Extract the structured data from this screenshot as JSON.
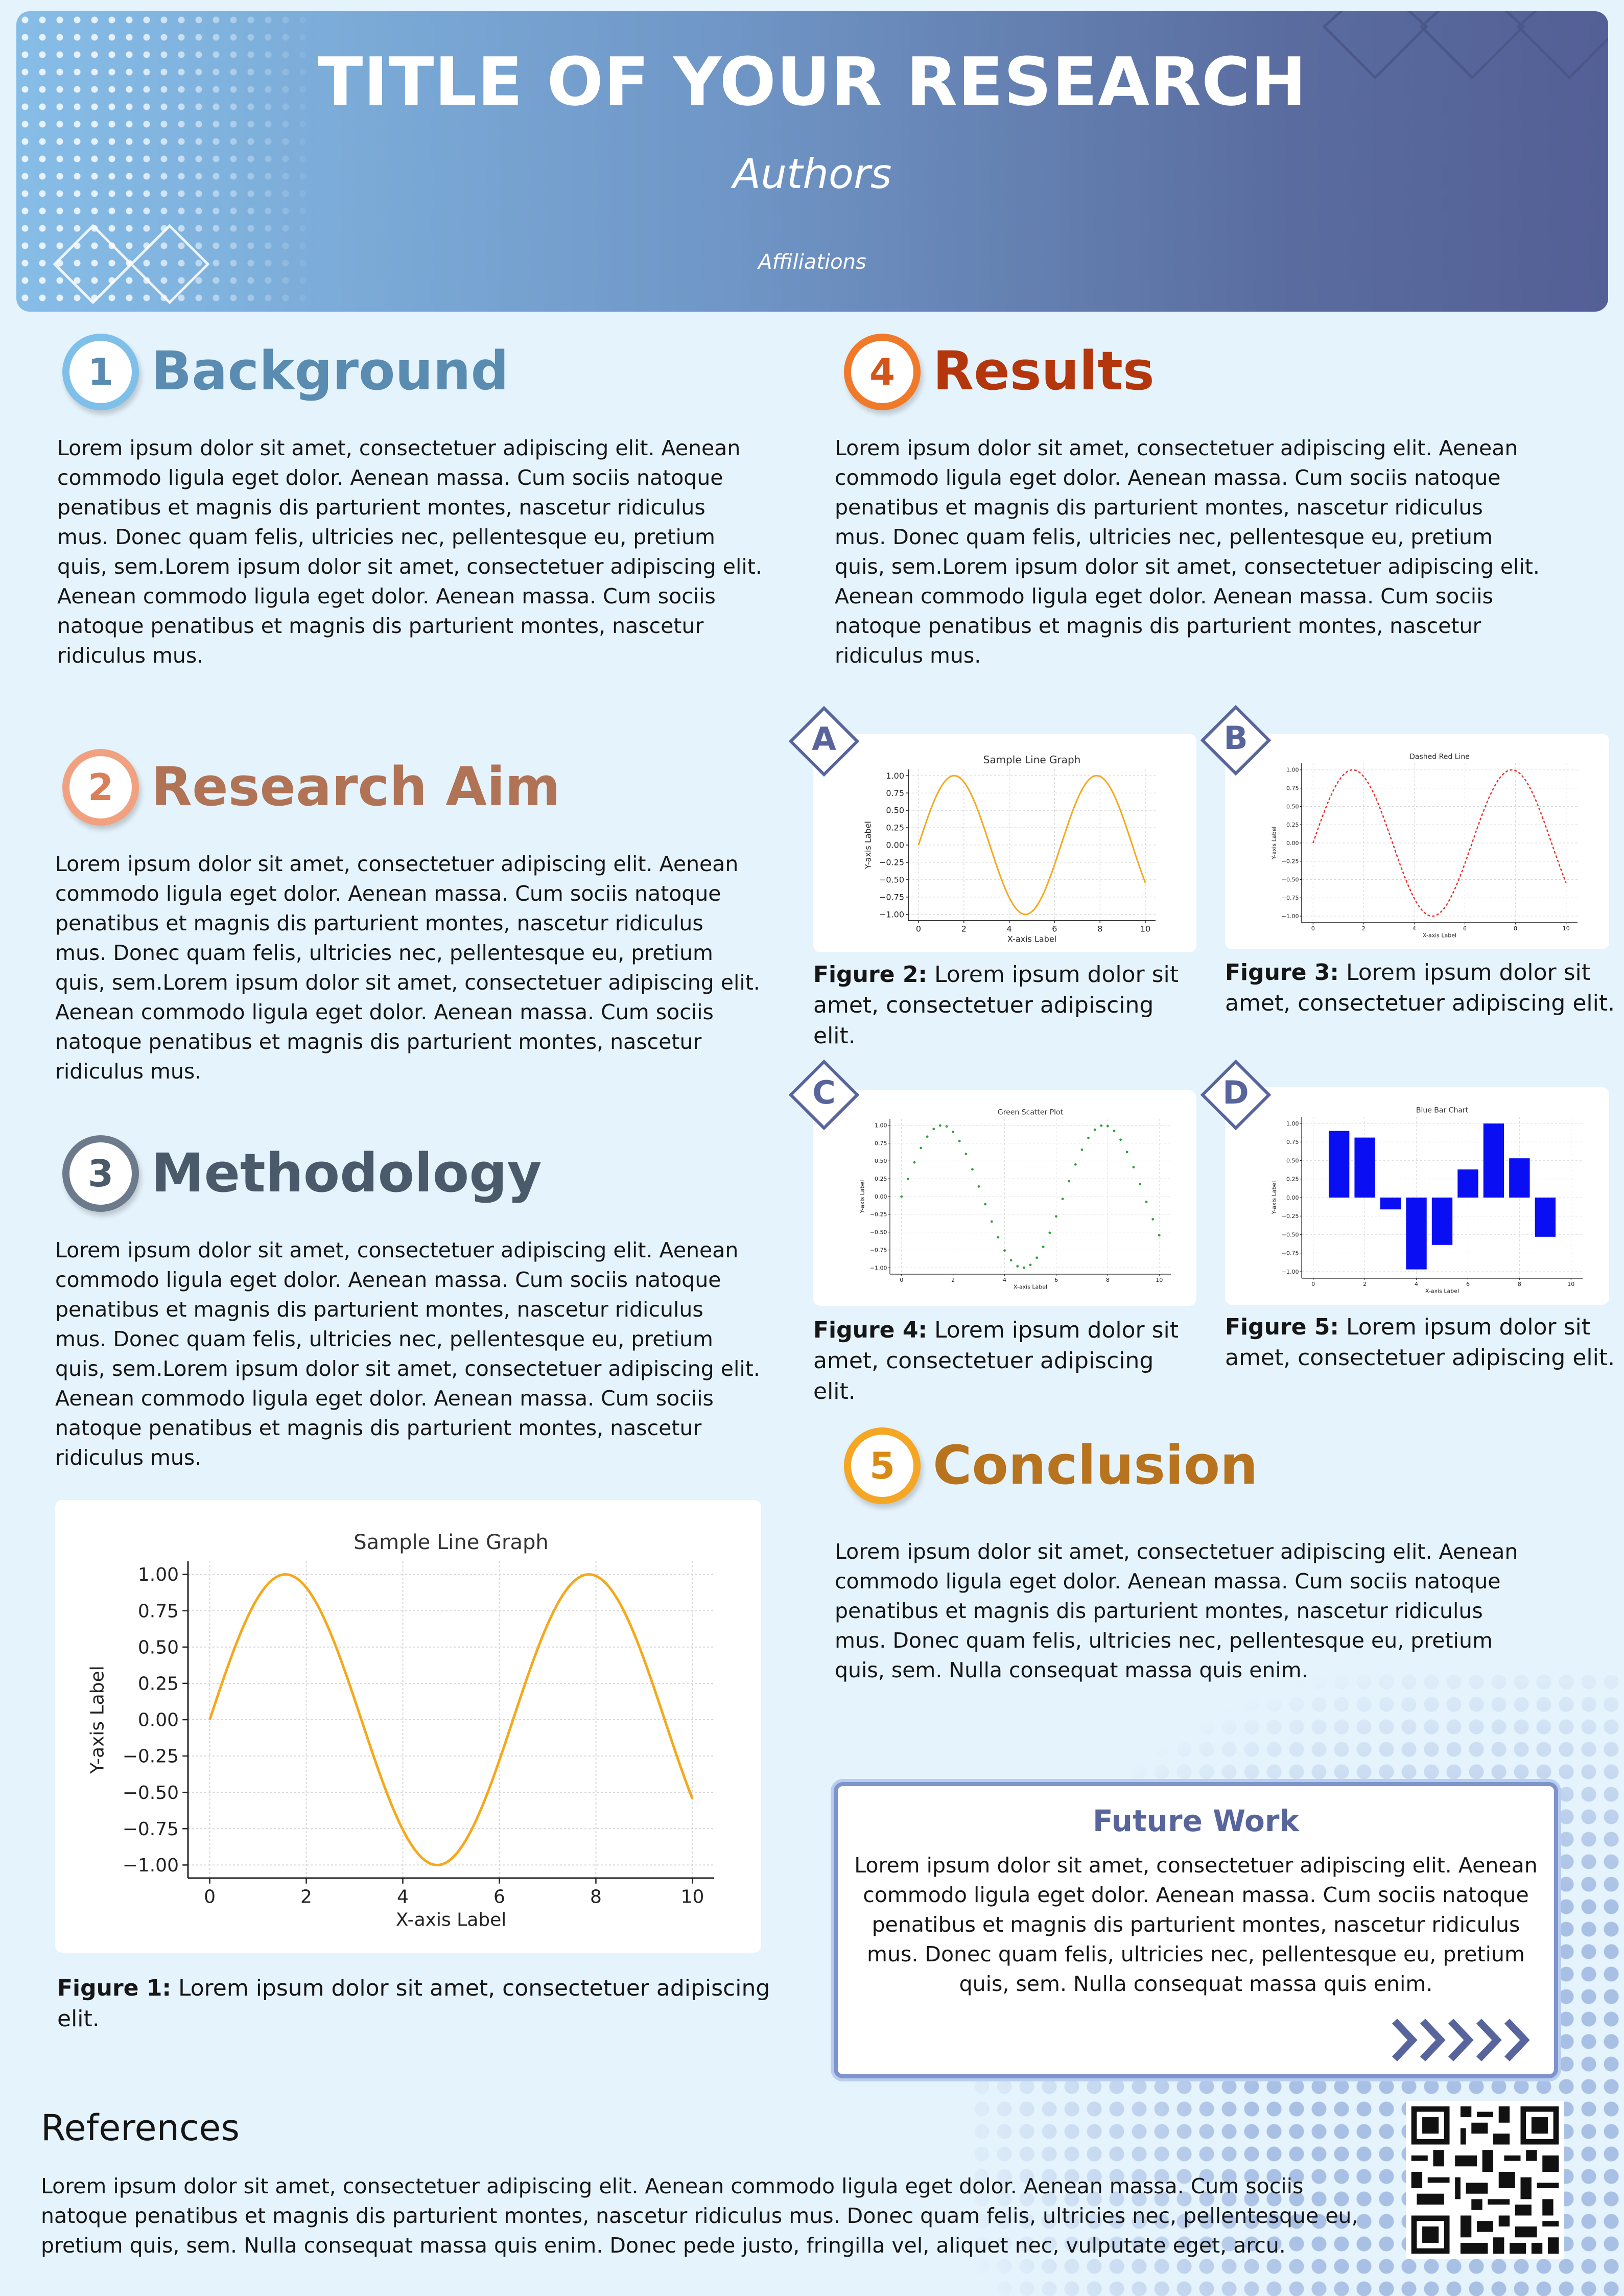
{
  "header": {
    "title": "TITLE OF YOUR RESEARCH",
    "authors": "Authors",
    "affiliations": "Affiliations"
  },
  "colors": {
    "background": "#e5f3fc",
    "header_start": "#86bde7",
    "header_end": "#535f96",
    "background_section": "#5a8bb0",
    "aim_section": "#b07356",
    "methodology_section": "#4a5a6a",
    "results_section": "#b4360c",
    "conclusion_section": "#b8731e",
    "accent": "#58659c"
  },
  "sections": {
    "background": {
      "number": "1",
      "title": "Background",
      "text": "Lorem ipsum dolor sit amet, consectetuer adipiscing elit. Aenean commodo ligula eget dolor. Aenean massa. Cum sociis natoque penatibus et magnis dis parturient montes, nascetur ridiculus mus. Donec quam felis, ultricies nec, pellentesque eu, pretium quis, sem.Lorem ipsum dolor sit amet, consectetuer adipiscing elit. Aenean commodo ligula eget dolor. Aenean massa. Cum sociis natoque penatibus et magnis dis parturient montes, nascetur ridiculus mus."
    },
    "aim": {
      "number": "2",
      "title": "Research Aim",
      "text": "Lorem ipsum dolor sit amet, consectetuer adipiscing elit. Aenean commodo ligula eget dolor. Aenean massa. Cum sociis natoque penatibus et magnis dis parturient montes, nascetur ridiculus mus. Donec quam felis, ultricies nec, pellentesque eu, pretium quis, sem.Lorem ipsum dolor sit amet, consectetuer adipiscing elit. Aenean commodo ligula eget dolor. Aenean massa. Cum sociis natoque penatibus et magnis dis parturient montes, nascetur ridiculus mus."
    },
    "methodology": {
      "number": "3",
      "title": "Methodology",
      "text": "Lorem ipsum dolor sit amet, consectetuer adipiscing elit. Aenean commodo ligula eget dolor. Aenean massa. Cum sociis natoque penatibus et magnis dis parturient montes, nascetur ridiculus mus. Donec quam felis, ultricies nec, pellentesque eu, pretium quis, sem.Lorem ipsum dolor sit amet, consectetuer adipiscing elit. Aenean commodo ligula eget dolor. Aenean massa. Cum sociis natoque penatibus et magnis dis parturient montes, nascetur ridiculus mus."
    },
    "results": {
      "number": "4",
      "title": "Results",
      "text": "Lorem ipsum dolor sit amet, consectetuer adipiscing elit. Aenean commodo ligula eget dolor. Aenean massa. Cum sociis natoque penatibus et magnis dis parturient montes, nascetur ridiculus mus. Donec quam felis, ultricies nec, pellentesque eu, pretium quis, sem.Lorem ipsum dolor sit amet, consectetuer adipiscing elit. Aenean commodo ligula eget dolor. Aenean massa. Cum sociis natoque penatibus et magnis dis parturient montes, nascetur ridiculus mus."
    },
    "conclusion": {
      "number": "5",
      "title": "Conclusion",
      "text": "Lorem ipsum dolor sit amet, consectetuer adipiscing elit. Aenean commodo ligula eget dolor. Aenean massa. Cum sociis natoque penatibus et magnis dis parturient montes, nascetur ridiculus mus. Donec quam felis, ultricies nec, pellentesque eu, pretium quis, sem. Nulla consequat massa quis enim."
    }
  },
  "figures": [
    {
      "label": "Figure 1:",
      "caption": " Lorem ipsum dolor sit amet, consectetuer adipiscing elit."
    },
    {
      "label": "Figure 2:",
      "caption": " Lorem ipsum dolor sit amet, consectetuer adipiscing elit.",
      "letter": "A"
    },
    {
      "label": "Figure 3:",
      "caption": " Lorem ipsum dolor sit amet, consectetuer adipiscing elit.",
      "letter": "B"
    },
    {
      "label": "Figure 4:",
      "caption": " Lorem ipsum dolor sit amet, consectetuer adipiscing elit.",
      "letter": "C"
    },
    {
      "label": "Figure 5:",
      "caption": " Lorem ipsum dolor sit amet, consectetuer adipiscing elit.",
      "letter": "D"
    }
  ],
  "future_work": {
    "title": "Future Work",
    "text": "Lorem ipsum dolor sit amet, consectetuer adipiscing elit. Aenean commodo ligula eget dolor. Aenean massa. Cum sociis natoque penatibus et magnis dis parturient montes, nascetur ridiculus mus. Donec quam felis, ultricies nec, pellentesque eu, pretium quis, sem. Nulla consequat massa quis enim."
  },
  "references": {
    "title": "References",
    "text": "Lorem ipsum dolor sit amet, consectetuer adipiscing elit. Aenean commodo ligula eget dolor. Aenean massa. Cum sociis natoque penatibus et magnis dis parturient montes, nascetur ridiculus mus. Donec quam felis, ultricies nec, pellentesque eu, pretium quis, sem. Nulla consequat massa quis enim. Donec pede justo, fringilla vel, aliquet nec, vulputate eget, arcu."
  },
  "qr_icon": "qr-code-icon",
  "chart_data": [
    {
      "type": "line",
      "title": "Sample Line Graph",
      "xlabel": "X-axis Label",
      "ylabel": "Y-axis Label",
      "function": "sin(x)",
      "xlim": [
        0,
        10
      ],
      "ylim": [
        -1,
        1
      ],
      "xticks": [
        "0",
        "2",
        "4",
        "6",
        "8",
        "10"
      ],
      "yticks": [
        "1.00",
        "0.75",
        "0.50",
        "0.25",
        "0.00",
        "−0.25",
        "−0.50",
        "−0.75",
        "−1.00"
      ],
      "color": "#f6a81c",
      "grid": true,
      "style": "solid",
      "x": [
        0,
        0.5,
        1,
        1.5,
        2,
        2.5,
        3,
        3.5,
        4,
        4.5,
        5,
        5.5,
        6,
        6.5,
        7,
        7.5,
        8,
        8.5,
        9,
        9.5,
        10
      ],
      "y": [
        0,
        0.479,
        0.841,
        0.997,
        0.909,
        0.598,
        0.141,
        -0.351,
        -0.757,
        -0.978,
        -0.959,
        -0.706,
        -0.279,
        0.215,
        0.657,
        0.938,
        0.989,
        0.798,
        0.412,
        -0.075,
        -0.544
      ]
    },
    {
      "type": "line",
      "title": "Sample Line Graph",
      "xlabel": "X-axis Label",
      "ylabel": "Y-axis Label",
      "function": "sin(x)",
      "xlim": [
        0,
        10
      ],
      "ylim": [
        -1,
        1
      ],
      "xticks": [
        "0",
        "2",
        "4",
        "6",
        "8",
        "10"
      ],
      "yticks": [
        "1.00",
        "0.75",
        "0.50",
        "0.25",
        "0.00",
        "−0.25",
        "−0.50",
        "−0.75",
        "−1.00"
      ],
      "color": "#f6a81c",
      "grid": true,
      "style": "solid",
      "x": [
        0,
        0.5,
        1,
        1.5,
        2,
        2.5,
        3,
        3.5,
        4,
        4.5,
        5,
        5.5,
        6,
        6.5,
        7,
        7.5,
        8,
        8.5,
        9,
        9.5,
        10
      ],
      "y": [
        0,
        0.479,
        0.841,
        0.997,
        0.909,
        0.598,
        0.141,
        -0.351,
        -0.757,
        -0.978,
        -0.959,
        -0.706,
        -0.279,
        0.215,
        0.657,
        0.938,
        0.989,
        0.798,
        0.412,
        -0.075,
        -0.544
      ]
    },
    {
      "type": "line",
      "title": "Dashed Red Line",
      "xlabel": "X-axis Label",
      "ylabel": "Y-axis Label",
      "function": "sin(x)",
      "xlim": [
        0,
        10
      ],
      "ylim": [
        -1,
        1
      ],
      "xticks": [
        "0",
        "2",
        "4",
        "6",
        "8",
        "10"
      ],
      "yticks": [
        "1.00",
        "0.75",
        "0.50",
        "0.25",
        "0.00",
        "−0.25",
        "−0.50",
        "−0.75",
        "−1.00"
      ],
      "color": "#e8302c",
      "grid": true,
      "style": "dashed",
      "x": [
        0,
        0.5,
        1,
        1.5,
        2,
        2.5,
        3,
        3.5,
        4,
        4.5,
        5,
        5.5,
        6,
        6.5,
        7,
        7.5,
        8,
        8.5,
        9,
        9.5,
        10
      ],
      "y": [
        0,
        0.479,
        0.841,
        0.997,
        0.909,
        0.598,
        0.141,
        -0.351,
        -0.757,
        -0.978,
        -0.959,
        -0.706,
        -0.279,
        0.215,
        0.657,
        0.938,
        0.989,
        0.798,
        0.412,
        -0.075,
        -0.544
      ]
    },
    {
      "type": "scatter",
      "title": "Green Scatter Plot",
      "xlabel": "X-axis Label",
      "ylabel": "Y-axis Label",
      "function": "sin(x)",
      "xlim": [
        0,
        10
      ],
      "ylim": [
        -1,
        1
      ],
      "xticks": [
        "0",
        "2",
        "4",
        "6",
        "8",
        "10"
      ],
      "yticks": [
        "1.00",
        "0.75",
        "0.50",
        "0.25",
        "0.00",
        "−0.25",
        "−0.50",
        "−0.75",
        "−1.00"
      ],
      "color": "#2e9e3a",
      "grid": true,
      "x": [
        0,
        0.25,
        0.5,
        0.75,
        1,
        1.25,
        1.5,
        1.75,
        2,
        2.25,
        2.5,
        2.75,
        3,
        3.25,
        3.5,
        3.75,
        4,
        4.25,
        4.5,
        4.75,
        5,
        5.25,
        5.5,
        5.75,
        6,
        6.25,
        6.5,
        6.75,
        7,
        7.25,
        7.5,
        7.75,
        8,
        8.25,
        8.5,
        8.75,
        9,
        9.25,
        9.5,
        9.75,
        10
      ],
      "y": [
        0,
        0.247,
        0.479,
        0.682,
        0.841,
        0.949,
        0.997,
        0.984,
        0.909,
        0.778,
        0.598,
        0.382,
        0.141,
        -0.108,
        -0.351,
        -0.572,
        -0.757,
        -0.895,
        -0.978,
        -0.999,
        -0.959,
        -0.859,
        -0.706,
        -0.508,
        -0.279,
        -0.033,
        0.215,
        0.45,
        0.657,
        0.823,
        0.938,
        0.995,
        0.989,
        0.922,
        0.798,
        0.625,
        0.412,
        0.174,
        -0.075,
        -0.319,
        -0.544
      ]
    },
    {
      "type": "bar",
      "title": "Blue Bar Chart",
      "xlabel": "X-axis Label",
      "ylabel": "Y-axis Label",
      "xlim": [
        0,
        10
      ],
      "ylim": [
        -1,
        1
      ],
      "xticks": [
        "0",
        "2",
        "4",
        "6",
        "8",
        "10"
      ],
      "yticks": [
        "1.00",
        "0.75",
        "0.50",
        "0.25",
        "0.00",
        "−0.25",
        "−0.50",
        "−0.75",
        "−1.00"
      ],
      "color": "#0a0ef2",
      "grid": true,
      "x": [
        1,
        2,
        3,
        4,
        5,
        6,
        7,
        8,
        9
      ],
      "values": [
        0.9,
        0.81,
        -0.16,
        -0.97,
        -0.64,
        0.38,
        1.0,
        0.53,
        -0.53
      ]
    }
  ]
}
